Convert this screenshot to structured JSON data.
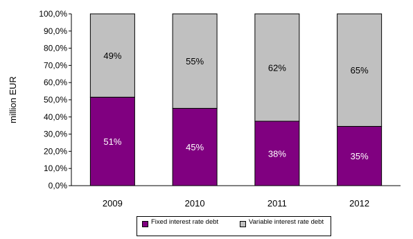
{
  "chart_data": {
    "type": "bar",
    "stacked": true,
    "categories": [
      "2009",
      "2010",
      "2011",
      "2012"
    ],
    "series": [
      {
        "name": "Fixed interest rate debt",
        "values": [
          51.5,
          45,
          37.5,
          34.5
        ],
        "labels": [
          "51%",
          "45%",
          "38%",
          "35%"
        ],
        "color": "#800080",
        "label_color": "#ffffff"
      },
      {
        "name": "Variable interest rate debt",
        "values": [
          48.5,
          55,
          62.5,
          65.5
        ],
        "labels": [
          "49%",
          "55%",
          "62%",
          "65%"
        ],
        "color": "#c0c0c0",
        "label_color": "#000000"
      }
    ],
    "ylabel": "million EUR",
    "ylim": [
      0,
      100
    ],
    "yticks": [
      "0,0%",
      "10,0%",
      "20,0%",
      "30,0%",
      "40,0%",
      "50,0%",
      "60,0%",
      "70,0%",
      "80,0%",
      "90,0%",
      "100,0%"
    ],
    "grid": false,
    "legend": "bottom"
  }
}
